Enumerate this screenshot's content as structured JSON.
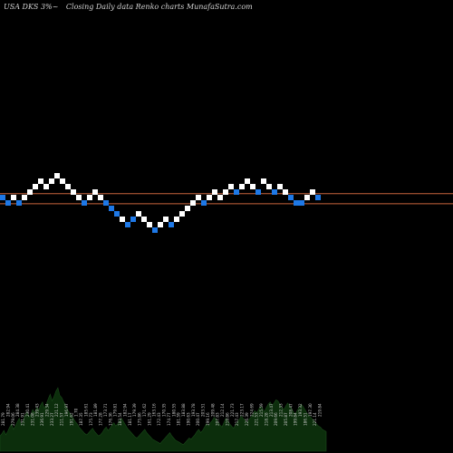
{
  "header": {
    "symbol": "USA DKS 3%~",
    "caption": "Closing Daily data  Renko  charts MunafaSutra.com"
  },
  "colors": {
    "background": "#000000",
    "up_brick": "#ffffff",
    "down_brick": "#1e78e6",
    "reference_line": "#c8643c",
    "volume_fill": "#0c2e0c",
    "volume_label": "#c8c8c8"
  },
  "chart_data": {
    "type": "renko",
    "bricks": [
      {
        "level": 0,
        "dir": "down"
      },
      {
        "level": -1,
        "dir": "down"
      },
      {
        "level": 0,
        "dir": "up"
      },
      {
        "level": -1,
        "dir": "down"
      },
      {
        "level": 0,
        "dir": "up"
      },
      {
        "level": 1,
        "dir": "up"
      },
      {
        "level": 2,
        "dir": "up"
      },
      {
        "level": 3,
        "dir": "up"
      },
      {
        "level": 2,
        "dir": "up"
      },
      {
        "level": 3,
        "dir": "up"
      },
      {
        "level": 4,
        "dir": "up"
      },
      {
        "level": 3,
        "dir": "up"
      },
      {
        "level": 2,
        "dir": "up"
      },
      {
        "level": 1,
        "dir": "up"
      },
      {
        "level": 0,
        "dir": "up"
      },
      {
        "level": -1,
        "dir": "down"
      },
      {
        "level": 0,
        "dir": "up"
      },
      {
        "level": 1,
        "dir": "up"
      },
      {
        "level": 0,
        "dir": "up"
      },
      {
        "level": -1,
        "dir": "down"
      },
      {
        "level": -2,
        "dir": "down"
      },
      {
        "level": -3,
        "dir": "down"
      },
      {
        "level": -4,
        "dir": "up"
      },
      {
        "level": -5,
        "dir": "down"
      },
      {
        "level": -4,
        "dir": "down"
      },
      {
        "level": -3,
        "dir": "up"
      },
      {
        "level": -4,
        "dir": "up"
      },
      {
        "level": -5,
        "dir": "up"
      },
      {
        "level": -6,
        "dir": "down"
      },
      {
        "level": -5,
        "dir": "up"
      },
      {
        "level": -4,
        "dir": "up"
      },
      {
        "level": -5,
        "dir": "down"
      },
      {
        "level": -4,
        "dir": "up"
      },
      {
        "level": -3,
        "dir": "up"
      },
      {
        "level": -2,
        "dir": "up"
      },
      {
        "level": -1,
        "dir": "up"
      },
      {
        "level": 0,
        "dir": "up"
      },
      {
        "level": -1,
        "dir": "down"
      },
      {
        "level": 0,
        "dir": "up"
      },
      {
        "level": 1,
        "dir": "up"
      },
      {
        "level": 0,
        "dir": "up"
      },
      {
        "level": 1,
        "dir": "up"
      },
      {
        "level": 2,
        "dir": "up"
      },
      {
        "level": 1,
        "dir": "down"
      },
      {
        "level": 2,
        "dir": "up"
      },
      {
        "level": 3,
        "dir": "up"
      },
      {
        "level": 2,
        "dir": "up"
      },
      {
        "level": 1,
        "dir": "down"
      },
      {
        "level": 3,
        "dir": "up"
      },
      {
        "level": 2,
        "dir": "up"
      },
      {
        "level": 1,
        "dir": "down"
      },
      {
        "level": 2,
        "dir": "up"
      },
      {
        "level": 1,
        "dir": "up"
      },
      {
        "level": 0,
        "dir": "down"
      },
      {
        "level": -1,
        "dir": "down"
      },
      {
        "level": -1,
        "dir": "down"
      },
      {
        "level": 0,
        "dir": "up"
      },
      {
        "level": 1,
        "dir": "up"
      },
      {
        "level": 0,
        "dir": "down"
      }
    ],
    "reference_levels": [
      0.7,
      -1.15
    ],
    "volume": [
      14,
      16,
      19,
      15,
      18,
      22,
      25,
      20,
      23,
      27,
      30,
      24,
      28,
      33,
      36,
      31,
      34,
      38,
      35,
      40,
      37,
      42,
      45,
      39,
      43,
      48,
      52,
      46,
      50,
      55,
      58,
      51,
      49,
      45,
      42,
      38,
      35,
      33,
      30,
      27,
      25,
      22,
      20,
      18,
      16,
      15,
      17,
      19,
      21,
      18,
      16,
      14,
      15,
      17,
      20,
      22,
      19,
      21,
      24,
      26,
      23,
      25,
      28,
      30,
      27,
      24,
      21,
      19,
      17,
      15,
      13,
      12,
      14,
      16,
      18,
      20,
      17,
      15,
      13,
      11,
      10,
      9,
      8,
      7,
      9,
      11,
      13,
      15,
      17,
      14,
      12,
      10,
      9,
      8,
      7,
      6,
      8,
      10,
      12,
      11,
      13,
      15,
      18,
      20,
      17,
      19,
      22,
      25,
      23,
      26,
      28,
      31,
      29,
      27,
      24,
      22,
      26,
      30,
      28,
      25,
      23,
      21,
      24,
      27,
      29,
      32,
      30,
      28,
      26,
      29,
      31,
      34,
      37,
      35,
      38,
      41,
      39,
      36,
      40,
      43,
      45,
      42,
      44,
      47,
      46,
      43,
      40,
      38,
      41,
      44,
      42,
      39,
      36,
      34,
      37,
      40,
      43,
      41,
      38,
      35,
      33,
      31,
      29,
      27,
      25,
      23,
      22,
      20,
      19,
      18
    ],
    "volume_labels": [
      "281.79",
      "282.94",
      "279.06",
      "284.38",
      "231.91",
      "230.41",
      "231.08",
      "239.43",
      "236.91",
      "229.34",
      "233.27",
      "221.12",
      "211.57",
      "196.97",
      "191.62",
      "1.70",
      "187.35",
      "185.61",
      "175.73",
      "181.89",
      "177.28",
      "173.71",
      "176.36",
      "179.81",
      "183.54",
      "182.94",
      "181.17",
      "179.39",
      "175.86",
      "171.62",
      "161.29",
      "163.16",
      "172.43",
      "170.35",
      "174.77",
      "180.55",
      "181.59",
      "183.88",
      "190.63",
      "193.78",
      "200.47",
      "203.51",
      "199.16",
      "209.48",
      "207.83",
      "212.14",
      "219.86",
      "221.73",
      "217.43",
      "223.17",
      "226.39",
      "224.69",
      "221.53",
      "215.59",
      "218.28",
      "213.47",
      "209.66",
      "212.33",
      "205.87",
      "208.47",
      "199.84",
      "193.32",
      "186.51",
      "197.30",
      "221.14",
      "219.84"
    ]
  }
}
